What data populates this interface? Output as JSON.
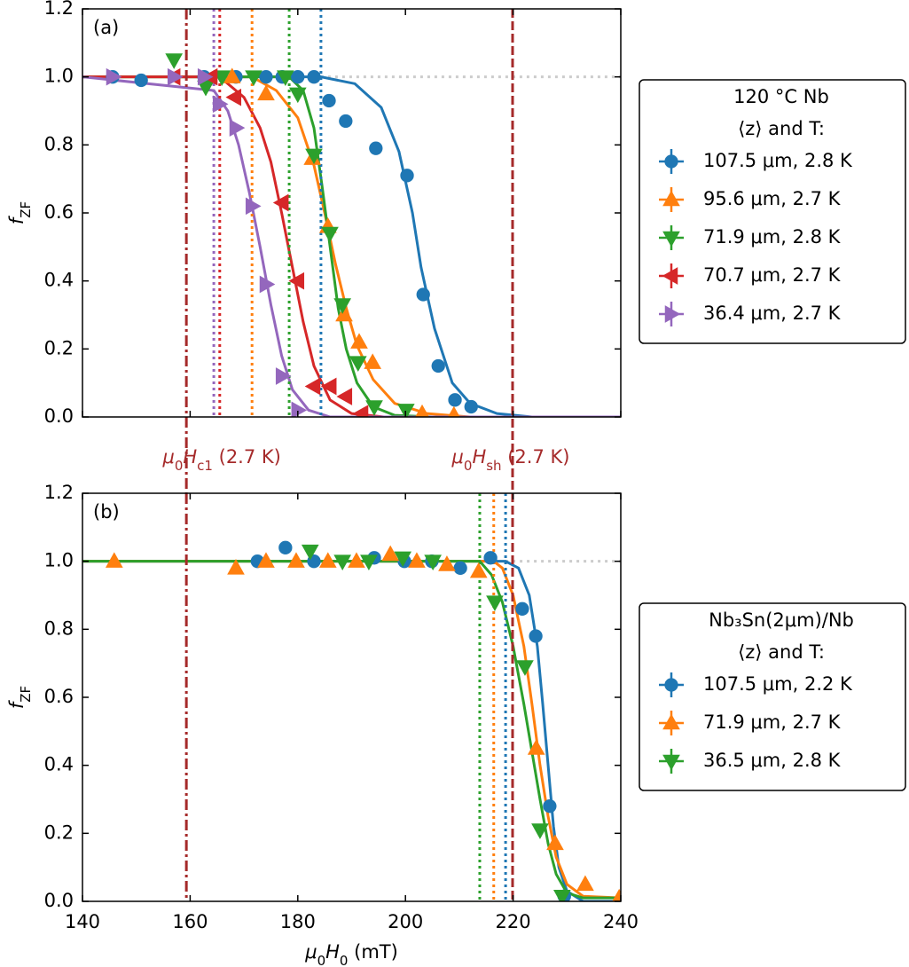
{
  "chart_data": [
    {
      "type": "scatter",
      "panel_label": "(a)",
      "xlim": [
        140,
        240
      ],
      "ylim": [
        0,
        1.2
      ],
      "xticks": [
        140,
        160,
        180,
        200,
        220,
        240
      ],
      "xticklabels": false,
      "yticks": [
        {
          "value": 0,
          "label": "0.0"
        },
        {
          "value": 0.2,
          "label": "0.2"
        },
        {
          "value": 0.4,
          "label": "0.4"
        },
        {
          "value": 0.6,
          "label": "0.6"
        },
        {
          "value": 0.8,
          "label": "0.8"
        },
        {
          "value": 1.0,
          "label": "1.0"
        },
        {
          "value": 1.2,
          "label": "1.2"
        }
      ],
      "ylabel_parts": [
        {
          "text": "f",
          "italic": true
        },
        {
          "text": "ZF",
          "sub": true
        }
      ],
      "hline": {
        "y": 1.0,
        "color": "#cccccc"
      },
      "vlines": [
        {
          "x": 159.3,
          "style": "dashdot",
          "color": "#a52a2a",
          "label_parts": [
            {
              "text": "μ",
              "italic": true
            },
            {
              "text": "0",
              "sub": true
            },
            {
              "text": "H",
              "italic": true
            },
            {
              "text": "c1",
              "sub": true
            },
            {
              "text": " (2.7 K)"
            }
          ]
        },
        {
          "x": 219.9,
          "style": "dashed",
          "color": "#a52a2a",
          "label_parts": [
            {
              "text": "μ",
              "italic": true
            },
            {
              "text": "0",
              "sub": true
            },
            {
              "text": "H",
              "italic": true
            },
            {
              "text": "sh",
              "sub": true
            },
            {
              "text": " (2.7 K)"
            }
          ]
        }
      ],
      "legend_title": [
        "120 °C Nb",
        "⟨z⟩ and T:"
      ],
      "legend_loc": "outside right",
      "series": [
        {
          "name": "107.5 μm, 2.8 K",
          "color": "#1f77b4",
          "marker": "circle",
          "vline": 184.3,
          "x": [
            145.6,
            150.9,
            162.6,
            168.5,
            174.1,
            177.1,
            180.0,
            183.0,
            185.8,
            188.9,
            194.5,
            200.3,
            203.3,
            206.1,
            209.2,
            212.2
          ],
          "values": [
            1.0,
            0.99,
            1.0,
            1.0,
            1.0,
            1.0,
            1.0,
            1.0,
            0.93,
            0.87,
            0.79,
            0.71,
            0.36,
            0.15,
            0.05,
            0.03
          ],
          "fit_x": [
            140,
            184.3,
            190.6,
            195.5,
            198.8,
            201.3,
            202.9,
            205.4,
            208.7,
            212,
            217,
            223.5,
            240
          ],
          "fit_values": [
            1.0,
            1.0,
            0.98,
            0.91,
            0.78,
            0.6,
            0.44,
            0.26,
            0.1,
            0.04,
            0.01,
            0.0,
            0.0
          ]
        },
        {
          "name": "95.6 μm, 2.7 K",
          "color": "#ff7f0e",
          "marker": "triangle-up",
          "vline": 171.5,
          "x": [
            167.8,
            174.1,
            182.7,
            185.6,
            188.6,
            191.4,
            193.9,
            203.1,
            209.0
          ],
          "values": [
            1.0,
            0.95,
            0.76,
            0.56,
            0.3,
            0.22,
            0.16,
            0.01,
            0.005
          ],
          "fit_x": [
            140,
            171.5,
            176,
            180,
            183,
            185,
            187,
            189,
            191,
            194,
            198,
            204,
            212,
            240
          ],
          "fit_values": [
            1.0,
            1.0,
            0.96,
            0.88,
            0.74,
            0.6,
            0.45,
            0.32,
            0.21,
            0.11,
            0.04,
            0.01,
            0.0,
            0.0
          ]
        },
        {
          "name": "71.9 μm, 2.8 K",
          "color": "#2ca02c",
          "marker": "triangle-down",
          "vline": 178.4,
          "x": [
            157.0,
            162.9,
            165.9,
            171.8,
            177.7,
            180.0,
            183.0,
            185.96,
            188.3,
            191.2,
            194.2,
            200.1
          ],
          "values": [
            1.05,
            0.97,
            1.0,
            1.0,
            1.0,
            0.95,
            0.77,
            0.54,
            0.33,
            0.16,
            0.03,
            0.02
          ],
          "fit_x": [
            140,
            178.4,
            181,
            183,
            184.5,
            186,
            187.5,
            189,
            191,
            194,
            198,
            205,
            240
          ],
          "fit_values": [
            1.0,
            1.0,
            0.96,
            0.85,
            0.68,
            0.5,
            0.32,
            0.2,
            0.1,
            0.03,
            0.005,
            0.0,
            0.0
          ]
        },
        {
          "name": "70.7 μm, 2.7 K",
          "color": "#d62728",
          "marker": "triangle-left",
          "vline": 165.5,
          "x": [
            157.0,
            163.9,
            168.3,
            177.1,
            180.0,
            183.0,
            186.0,
            188.9,
            191.9
          ],
          "values": [
            1.0,
            1.0,
            0.94,
            0.63,
            0.4,
            0.09,
            0.09,
            0.06,
            0.01
          ],
          "fit_x": [
            140,
            165.5,
            170,
            173,
            175,
            177,
            179,
            181,
            183,
            186,
            190,
            196,
            240
          ],
          "fit_values": [
            1.0,
            1.0,
            0.94,
            0.85,
            0.75,
            0.6,
            0.44,
            0.28,
            0.15,
            0.05,
            0.01,
            0.0,
            0.0
          ]
        },
        {
          "name": "36.4 μm, 2.7 K",
          "color": "#9467bd",
          "marker": "triangle-right",
          "vline": 164.4,
          "x": [
            145.6,
            157.0,
            162.6,
            165.4,
            168.5,
            171.5,
            174.1,
            177.1,
            180.0
          ],
          "values": [
            1.0,
            1.0,
            1.0,
            0.92,
            0.85,
            0.62,
            0.39,
            0.12,
            0.02
          ],
          "fit_x": [
            140,
            164.4,
            167,
            169,
            171,
            173,
            175,
            177,
            179,
            182,
            186,
            240
          ],
          "fit_values": [
            1.0,
            0.96,
            0.9,
            0.8,
            0.66,
            0.5,
            0.33,
            0.18,
            0.08,
            0.02,
            0.0,
            0.0
          ]
        }
      ]
    },
    {
      "type": "scatter",
      "panel_label": "(b)",
      "xlim": [
        140,
        240
      ],
      "ylim": [
        0,
        1.2
      ],
      "xticks": [
        140,
        160,
        180,
        200,
        220,
        240
      ],
      "xticklabels": true,
      "yticks": [
        {
          "value": 0,
          "label": "0.0"
        },
        {
          "value": 0.2,
          "label": "0.2"
        },
        {
          "value": 0.4,
          "label": "0.4"
        },
        {
          "value": 0.6,
          "label": "0.6"
        },
        {
          "value": 0.8,
          "label": "0.8"
        },
        {
          "value": 1.0,
          "label": "1.0"
        },
        {
          "value": 1.2,
          "label": "1.2"
        }
      ],
      "xlabel_parts": [
        {
          "text": "μ",
          "italic": true
        },
        {
          "text": "0",
          "sub": true
        },
        {
          "text": "H",
          "italic": true
        },
        {
          "text": "0",
          "sub": true
        },
        {
          "text": " (mT)"
        }
      ],
      "ylabel_parts": [
        {
          "text": "f",
          "italic": true
        },
        {
          "text": "ZF",
          "sub": true
        }
      ],
      "hline": {
        "y": 1.0,
        "color": "#cccccc"
      },
      "vlines": [
        {
          "x": 159.3,
          "style": "dashdot",
          "color": "#a52a2a"
        },
        {
          "x": 219.9,
          "style": "dashed",
          "color": "#a52a2a"
        }
      ],
      "legend_title": [
        "Nb₃Sn(2μm)/Nb",
        "⟨z⟩ and T:"
      ],
      "legend_loc": "outside right",
      "series": [
        {
          "name": "107.5 μm, 2.2 K",
          "color": "#1f77b4",
          "marker": "circle",
          "vline": 218.6,
          "x": [
            172.5,
            177.7,
            183.0,
            194.2,
            199.8,
            204.9,
            210.2,
            215.8,
            221.7,
            224.2,
            226.8,
            229.5
          ],
          "values": [
            1.0,
            1.04,
            1.0,
            1.01,
            1.0,
            1.0,
            0.98,
            1.01,
            0.86,
            0.78,
            0.28,
            0.015
          ],
          "fit_x": [
            140,
            218.6,
            221,
            223,
            224.5,
            225.5,
            226.5,
            227.5,
            228.5,
            230,
            233,
            240
          ],
          "fit_values": [
            1.0,
            1.0,
            0.98,
            0.9,
            0.75,
            0.58,
            0.4,
            0.22,
            0.1,
            0.03,
            0.0,
            0.0
          ]
        },
        {
          "name": "71.9 μm, 2.7 K",
          "color": "#ff7f0e",
          "marker": "triangle-up",
          "vline": 216.4,
          "x": [
            145.9,
            168.5,
            174.1,
            179.7,
            185.6,
            190.9,
            197.2,
            202.1,
            207.7,
            213.6,
            224.3,
            227.8,
            233.4,
            239.7
          ],
          "values": [
            1.0,
            0.98,
            1.0,
            1.0,
            1.0,
            1.0,
            1.02,
            1.0,
            0.99,
            0.97,
            0.45,
            0.17,
            0.05,
            0.01
          ],
          "fit_x": [
            140,
            216.4,
            218,
            220,
            222,
            223.5,
            225,
            226.5,
            228,
            230,
            233,
            240
          ],
          "fit_values": [
            1.0,
            1.0,
            0.98,
            0.9,
            0.75,
            0.58,
            0.4,
            0.25,
            0.13,
            0.05,
            0.015,
            0.01
          ]
        },
        {
          "name": "36.5 μm, 2.8 K",
          "color": "#2ca02c",
          "marker": "triangle-down",
          "vline": 213.8,
          "x": [
            182.3,
            188.3,
            193.2,
            199.5,
            205.1,
            216.6,
            222.2,
            225.0,
            229.1
          ],
          "values": [
            1.03,
            1.0,
            1.0,
            1.01,
            1.0,
            0.88,
            0.69,
            0.21,
            0.015
          ],
          "fit_x": [
            140,
            213.8,
            216,
            218,
            220,
            222,
            223.5,
            225,
            226.5,
            228,
            230,
            233,
            240
          ],
          "fit_values": [
            1.0,
            1.0,
            0.96,
            0.88,
            0.75,
            0.58,
            0.44,
            0.3,
            0.17,
            0.08,
            0.025,
            0.01,
            0.01
          ]
        }
      ]
    }
  ]
}
